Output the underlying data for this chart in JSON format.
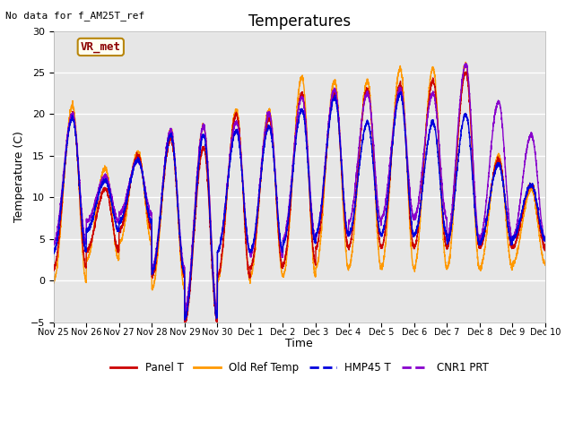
{
  "title": "Temperatures",
  "xlabel": "Time",
  "ylabel": "Temperature (C)",
  "ylim": [
    -5,
    30
  ],
  "annotation_top_left": "No data for f_AM25T_ref",
  "legend_box_label": "VR_met",
  "legend_entries": [
    "Panel T",
    "Old Ref Temp",
    "HMP45 T",
    "CNR1 PRT"
  ],
  "line_colors": [
    "#cc0000",
    "#ff9900",
    "#0000dd",
    "#8800cc"
  ],
  "background_color": "#e6e6e6",
  "fig_background": "#ffffff",
  "xtick_labels": [
    "Nov 25",
    "Nov 26",
    "Nov 27",
    "Nov 28",
    "Nov 29",
    "Nov 30",
    "Dec 1",
    "Dec 2",
    "Dec 3",
    "Dec 4",
    "Dec 5",
    "Dec 6",
    "Dec 7",
    "Dec 8",
    "Dec 9",
    "Dec 10"
  ],
  "yticks": [
    -5,
    0,
    5,
    10,
    15,
    20,
    25,
    30
  ],
  "days": 15,
  "num_points": 4320,
  "day_peak_hour": 0.58,
  "panel_day_min": [
    1.5,
    3.5,
    6.0,
    0.5,
    -5.0,
    0.5,
    1.5,
    2.0,
    4.0,
    4.0,
    4.0,
    4.0,
    4.0,
    4.0,
    4.0
  ],
  "panel_day_max": [
    20.0,
    11.0,
    15.0,
    17.0,
    16.0,
    20.0,
    19.5,
    22.5,
    22.5,
    23.0,
    23.5,
    24.0,
    25.0,
    14.5,
    11.5
  ],
  "old_day_min": [
    0.0,
    2.5,
    4.5,
    -1.0,
    -4.0,
    0.0,
    0.5,
    0.5,
    1.5,
    1.5,
    1.5,
    1.5,
    1.5,
    1.5,
    2.0
  ],
  "old_day_max": [
    21.0,
    13.5,
    15.5,
    18.0,
    18.5,
    20.5,
    20.5,
    24.5,
    24.0,
    24.0,
    25.5,
    25.5,
    26.0,
    15.0,
    11.0
  ],
  "hmp_day_min": [
    3.5,
    6.0,
    7.0,
    1.0,
    -4.5,
    3.5,
    3.5,
    4.5,
    5.5,
    5.5,
    5.5,
    5.5,
    4.5,
    4.5,
    5.0
  ],
  "hmp_day_max": [
    19.5,
    12.0,
    14.5,
    17.5,
    17.5,
    18.0,
    18.5,
    20.5,
    22.0,
    19.0,
    22.5,
    19.0,
    20.0,
    14.0,
    11.5
  ],
  "cnr_day_min": [
    4.5,
    7.0,
    8.0,
    1.5,
    -3.5,
    3.5,
    3.0,
    5.0,
    5.5,
    7.0,
    7.5,
    7.5,
    5.0,
    5.0,
    5.0
  ],
  "cnr_day_max": [
    20.0,
    12.5,
    14.5,
    18.0,
    18.5,
    19.0,
    20.0,
    22.0,
    23.0,
    22.5,
    23.0,
    22.5,
    26.0,
    21.5,
    17.5
  ]
}
